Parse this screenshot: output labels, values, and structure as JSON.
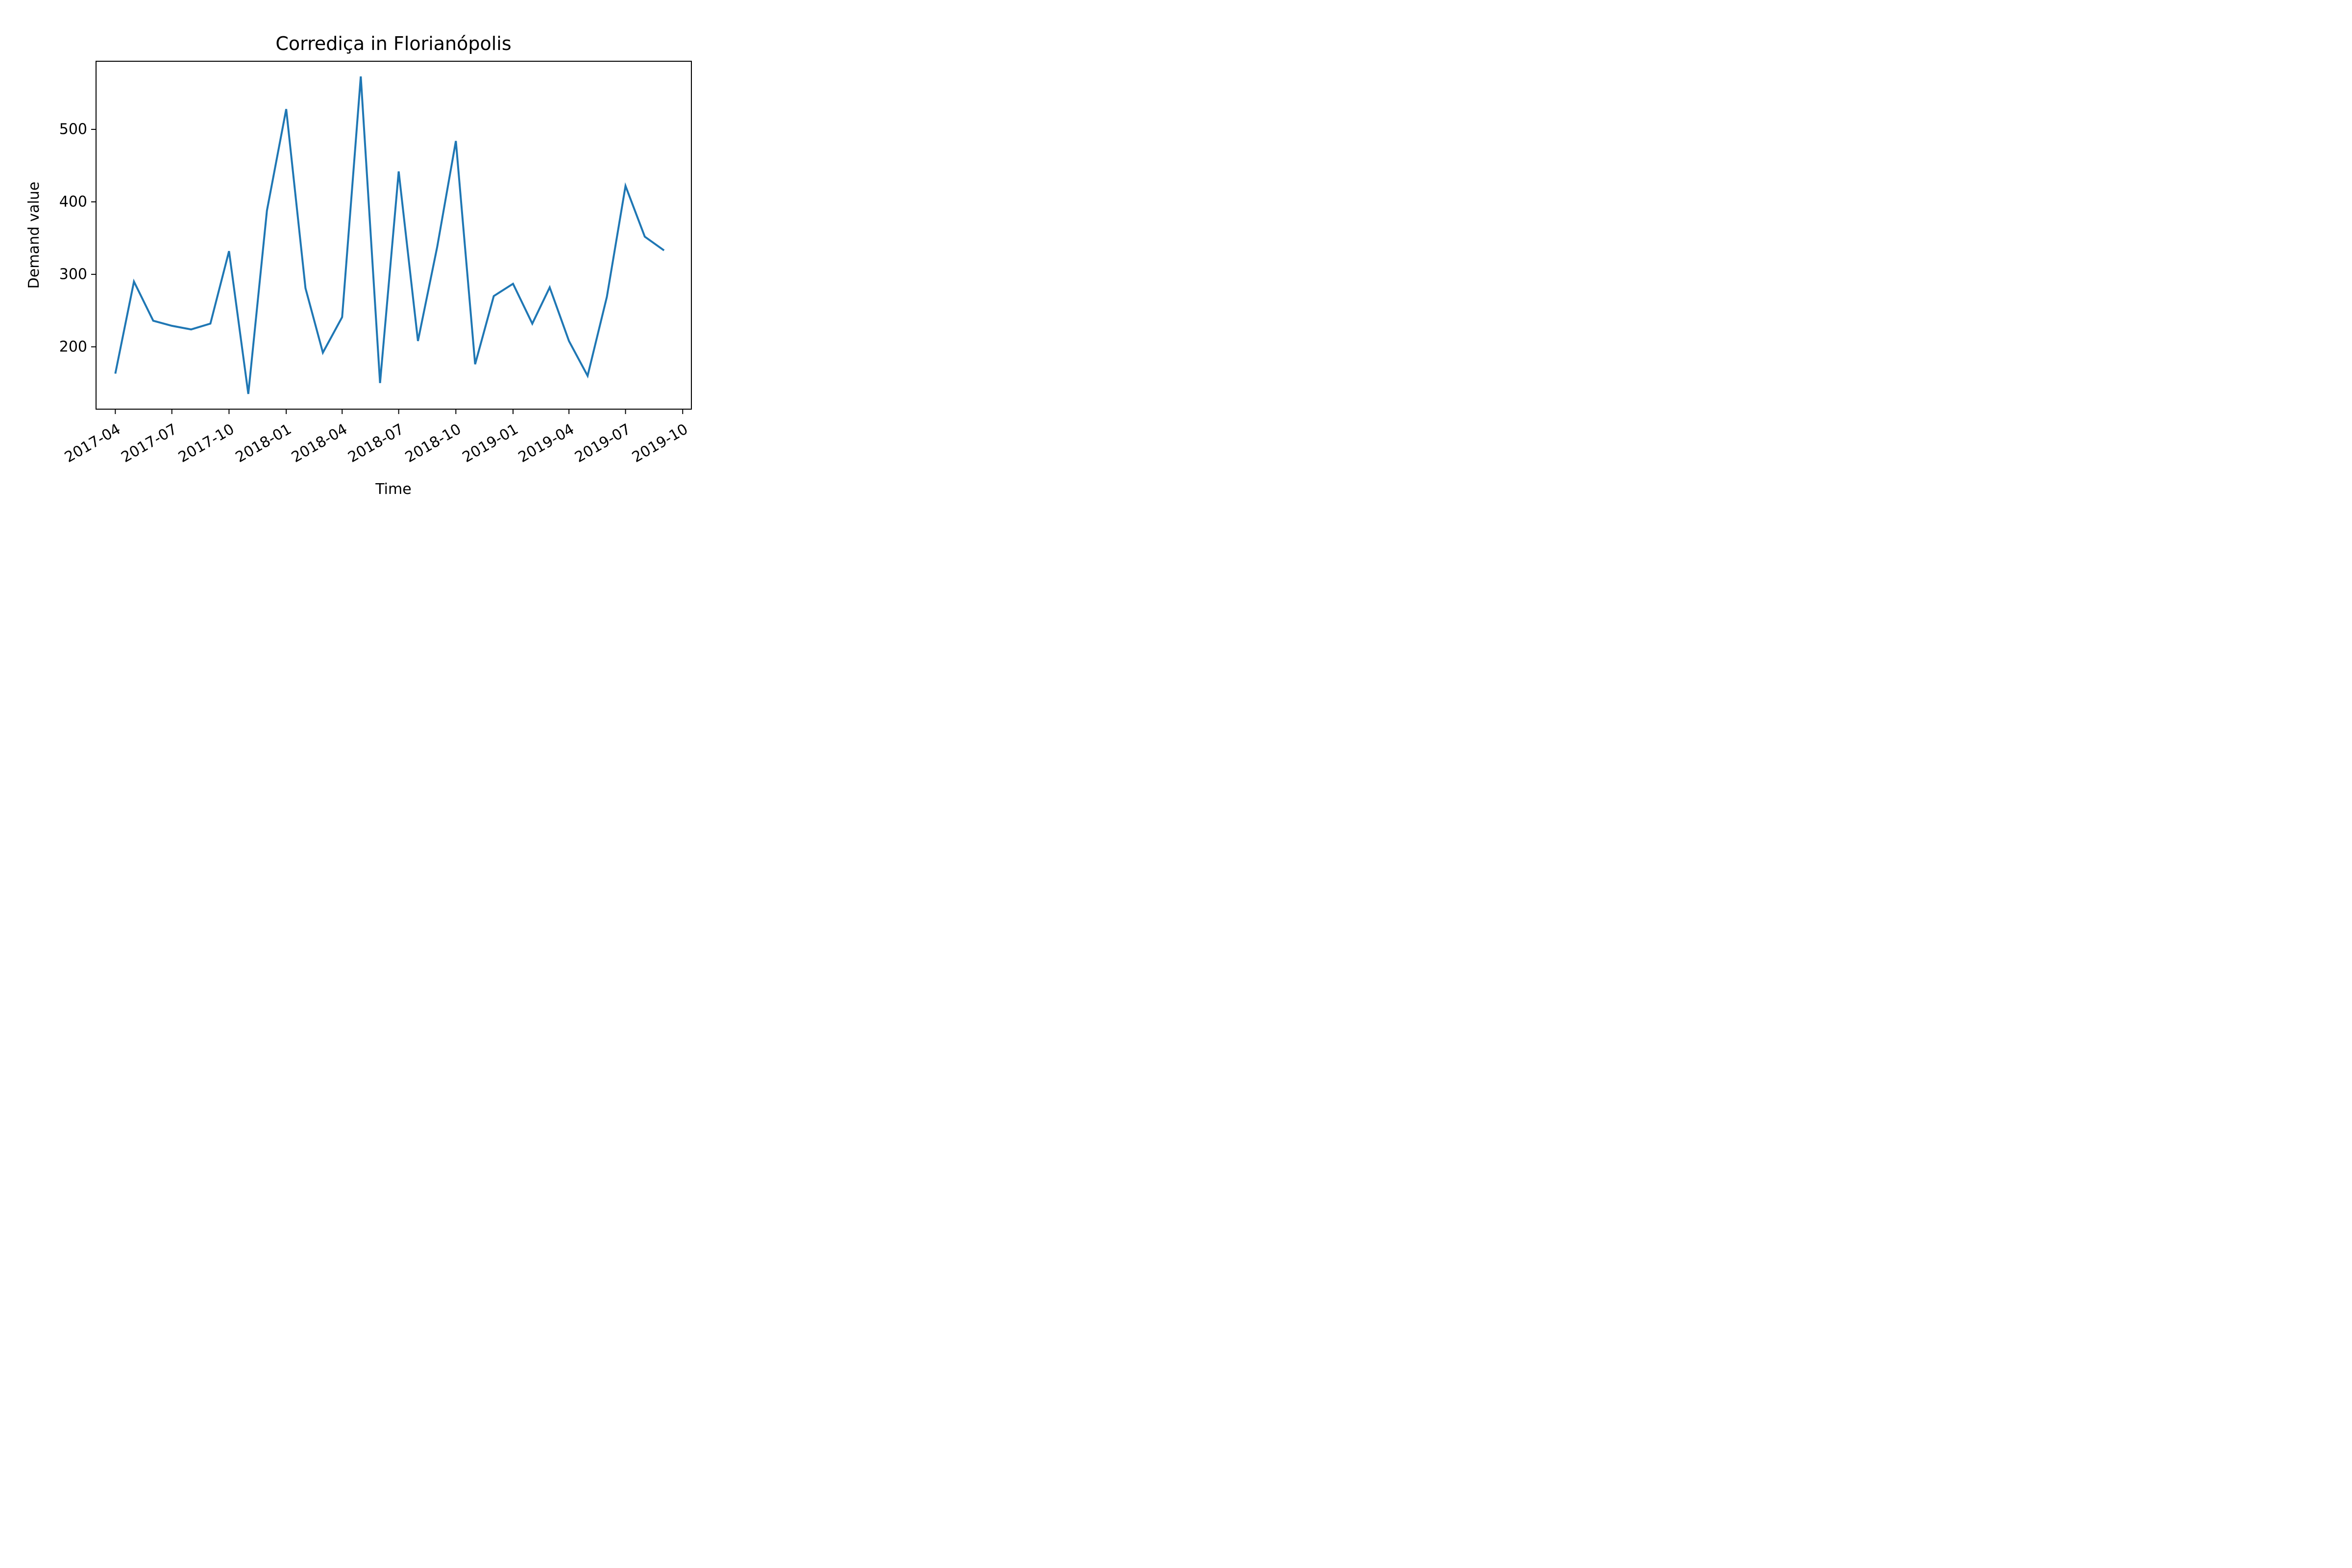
{
  "chart_data": {
    "type": "line",
    "title": "Corrediça in Florianópolis",
    "xlabel": "Time",
    "ylabel": "Demand value",
    "x_tick_labels": [
      "2017-04",
      "2017-07",
      "2017-10",
      "2018-01",
      "2018-04",
      "2018-07",
      "2018-10",
      "2019-01",
      "2019-04",
      "2019-07",
      "2019-10"
    ],
    "y_ticks": [
      200,
      300,
      400,
      500
    ],
    "x_range": [
      "2017-03-01",
      "2019-10-15"
    ],
    "ylim": [
      114,
      594
    ],
    "grid": false,
    "legend": "none",
    "series": [
      {
        "color": "#1f77b4",
        "x": [
          "2017-04-01",
          "2017-05-01",
          "2017-06-01",
          "2017-07-01",
          "2017-08-01",
          "2017-09-01",
          "2017-10-01",
          "2017-11-01",
          "2017-12-01",
          "2018-01-01",
          "2018-02-01",
          "2018-03-01",
          "2018-04-01",
          "2018-05-01",
          "2018-06-01",
          "2018-07-01",
          "2018-08-01",
          "2018-09-01",
          "2018-10-01",
          "2018-11-01",
          "2018-12-01",
          "2019-01-01",
          "2019-02-01",
          "2019-03-01",
          "2019-04-01",
          "2019-05-01",
          "2019-06-01",
          "2019-07-01",
          "2019-08-01",
          "2019-09-01"
        ],
        "values": [
          163,
          290,
          236,
          229,
          224,
          232,
          332,
          135,
          388,
          528,
          281,
          192,
          241,
          573,
          150,
          442,
          208,
          338,
          484,
          176,
          270,
          287,
          232,
          282,
          208,
          160,
          269,
          422,
          352,
          333
        ]
      }
    ]
  }
}
